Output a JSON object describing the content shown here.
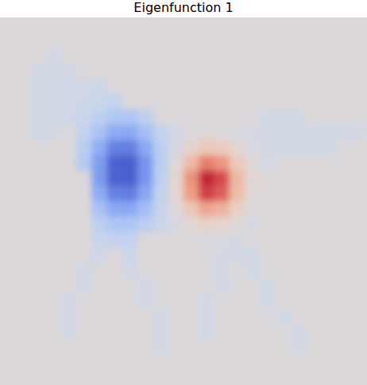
{
  "chart_data": {
    "type": "heatmap",
    "title": "Eigenfunction 1",
    "color_range": [
      -1,
      1
    ],
    "tick_labels": false,
    "cells": [
      [
        null,
        null,
        null,
        null,
        null,
        null,
        null,
        null,
        null,
        null,
        null,
        null,
        null,
        null,
        null,
        null,
        null,
        null,
        null,
        null,
        null,
        null,
        null,
        null
      ],
      [
        null,
        null,
        null,
        null,
        null,
        null,
        null,
        null,
        null,
        null,
        null,
        null,
        null,
        null,
        null,
        null,
        null,
        null,
        null,
        null,
        null,
        null,
        null,
        null
      ],
      [
        null,
        null,
        null,
        -0.12,
        null,
        null,
        null,
        null,
        null,
        null,
        null,
        null,
        null,
        null,
        null,
        null,
        null,
        null,
        null,
        null,
        null,
        null,
        null,
        null
      ],
      [
        null,
        null,
        -0.12,
        -0.12,
        -0.12,
        null,
        null,
        null,
        null,
        null,
        null,
        null,
        null,
        null,
        null,
        null,
        null,
        null,
        null,
        null,
        null,
        null,
        null,
        null
      ],
      [
        null,
        null,
        -0.12,
        -0.12,
        -0.13,
        -0.14,
        -0.16,
        null,
        null,
        null,
        null,
        null,
        null,
        null,
        null,
        null,
        null,
        null,
        null,
        null,
        null,
        null,
        null,
        null
      ],
      [
        null,
        null,
        -0.12,
        -0.12,
        -0.13,
        -0.16,
        -0.21,
        -0.25,
        null,
        null,
        null,
        null,
        null,
        null,
        null,
        null,
        null,
        null,
        null,
        null,
        null,
        null,
        null,
        null
      ],
      [
        null,
        null,
        -0.12,
        -0.12,
        -0.15,
        -0.21,
        -0.3,
        -0.39,
        -0.4,
        -0.31,
        null,
        null,
        null,
        null,
        null,
        null,
        null,
        -0.12,
        -0.12,
        -0.12,
        null,
        null,
        null,
        null
      ],
      [
        null,
        null,
        -0.12,
        -0.12,
        null,
        -0.27,
        -0.43,
        -0.58,
        -0.59,
        -0.45,
        -0.27,
        -0.13,
        -0.03,
        0.02,
        0.01,
        -0.05,
        -0.09,
        -0.12,
        -0.12,
        -0.12,
        -0.12,
        -0.12,
        -0.12,
        -0.12
      ],
      [
        null,
        null,
        null,
        null,
        null,
        -0.33,
        -0.57,
        -0.78,
        -0.79,
        -0.59,
        -0.32,
        -0.08,
        0.14,
        0.28,
        0.24,
        0.08,
        -0.05,
        -0.12,
        -0.12,
        -0.12,
        -0.12,
        -0.12,
        null,
        null
      ],
      [
        null,
        null,
        null,
        null,
        null,
        -0.37,
        -0.65,
        -0.91,
        -0.92,
        -0.69,
        -0.33,
        0.03,
        0.4,
        0.65,
        0.57,
        0.27,
        0.02,
        -0.09,
        null,
        null,
        null,
        null,
        null,
        null
      ],
      [
        null,
        null,
        null,
        null,
        null,
        null,
        -0.66,
        -0.91,
        -0.92,
        -0.69,
        -0.31,
        0.11,
        0.58,
        0.92,
        0.81,
        0.4,
        0.07,
        null,
        null,
        null,
        null,
        null,
        null,
        null
      ],
      [
        null,
        null,
        null,
        null,
        null,
        null,
        -0.57,
        -0.78,
        -0.8,
        -0.6,
        -0.27,
        0.1,
        0.54,
        0.84,
        0.75,
        0.37,
        0.05,
        null,
        null,
        null,
        null,
        null,
        null,
        null
      ],
      [
        null,
        null,
        null,
        null,
        null,
        null,
        -0.44,
        -0.59,
        -0.6,
        -0.46,
        -0.23,
        0.02,
        0.3,
        0.5,
        0.44,
        0.2,
        -0.01,
        null,
        null,
        null,
        null,
        null,
        null,
        null
      ],
      [
        null,
        null,
        null,
        null,
        null,
        null,
        -0.31,
        -0.4,
        -0.4,
        -0.32,
        -0.2,
        -0.07,
        0.07,
        0.16,
        0.13,
        0.02,
        -0.07,
        null,
        null,
        null,
        null,
        null,
        null,
        null
      ],
      [
        null,
        null,
        null,
        null,
        null,
        null,
        -0.22,
        -0.26,
        -0.26,
        null,
        null,
        null,
        null,
        -0.03,
        -0.04,
        -0.08,
        null,
        null,
        null,
        null,
        null,
        null,
        null,
        null
      ],
      [
        null,
        null,
        null,
        null,
        null,
        null,
        -0.16,
        null,
        -0.18,
        null,
        null,
        null,
        null,
        null,
        -0.1,
        -0.11,
        -0.12,
        null,
        null,
        null,
        null,
        null,
        null,
        null
      ],
      [
        null,
        null,
        null,
        null,
        null,
        -0.13,
        null,
        null,
        -0.14,
        null,
        null,
        null,
        null,
        null,
        -0.12,
        null,
        -0.12,
        null,
        null,
        null,
        null,
        null,
        null,
        null
      ],
      [
        null,
        null,
        null,
        null,
        null,
        -0.12,
        null,
        null,
        null,
        -0.12,
        null,
        null,
        null,
        null,
        -0.12,
        null,
        null,
        -0.12,
        null,
        null,
        null,
        null,
        null,
        null
      ],
      [
        null,
        null,
        null,
        null,
        -0.12,
        null,
        null,
        null,
        null,
        -0.12,
        null,
        null,
        null,
        -0.12,
        null,
        null,
        null,
        -0.12,
        null,
        null,
        null,
        null,
        null,
        null
      ],
      [
        null,
        null,
        null,
        null,
        -0.12,
        null,
        null,
        null,
        null,
        null,
        -0.12,
        null,
        null,
        -0.12,
        null,
        null,
        null,
        null,
        -0.12,
        null,
        null,
        null,
        null,
        null
      ],
      [
        null,
        null,
        null,
        null,
        -0.12,
        null,
        null,
        null,
        null,
        null,
        -0.12,
        null,
        null,
        -0.12,
        null,
        null,
        null,
        null,
        null,
        -0.12,
        null,
        null,
        null,
        null
      ],
      [
        null,
        null,
        null,
        null,
        null,
        null,
        null,
        null,
        null,
        null,
        -0.12,
        null,
        null,
        null,
        null,
        null,
        null,
        null,
        null,
        -0.12,
        null,
        null,
        null,
        null
      ],
      [
        null,
        null,
        null,
        null,
        null,
        null,
        null,
        null,
        null,
        null,
        null,
        null,
        null,
        null,
        null,
        null,
        null,
        null,
        null,
        null,
        null,
        null,
        null,
        null
      ],
      [
        null,
        null,
        null,
        null,
        null,
        null,
        null,
        null,
        null,
        null,
        null,
        null,
        null,
        null,
        null,
        null,
        null,
        null,
        null,
        null,
        null,
        null,
        null,
        null
      ]
    ]
  }
}
